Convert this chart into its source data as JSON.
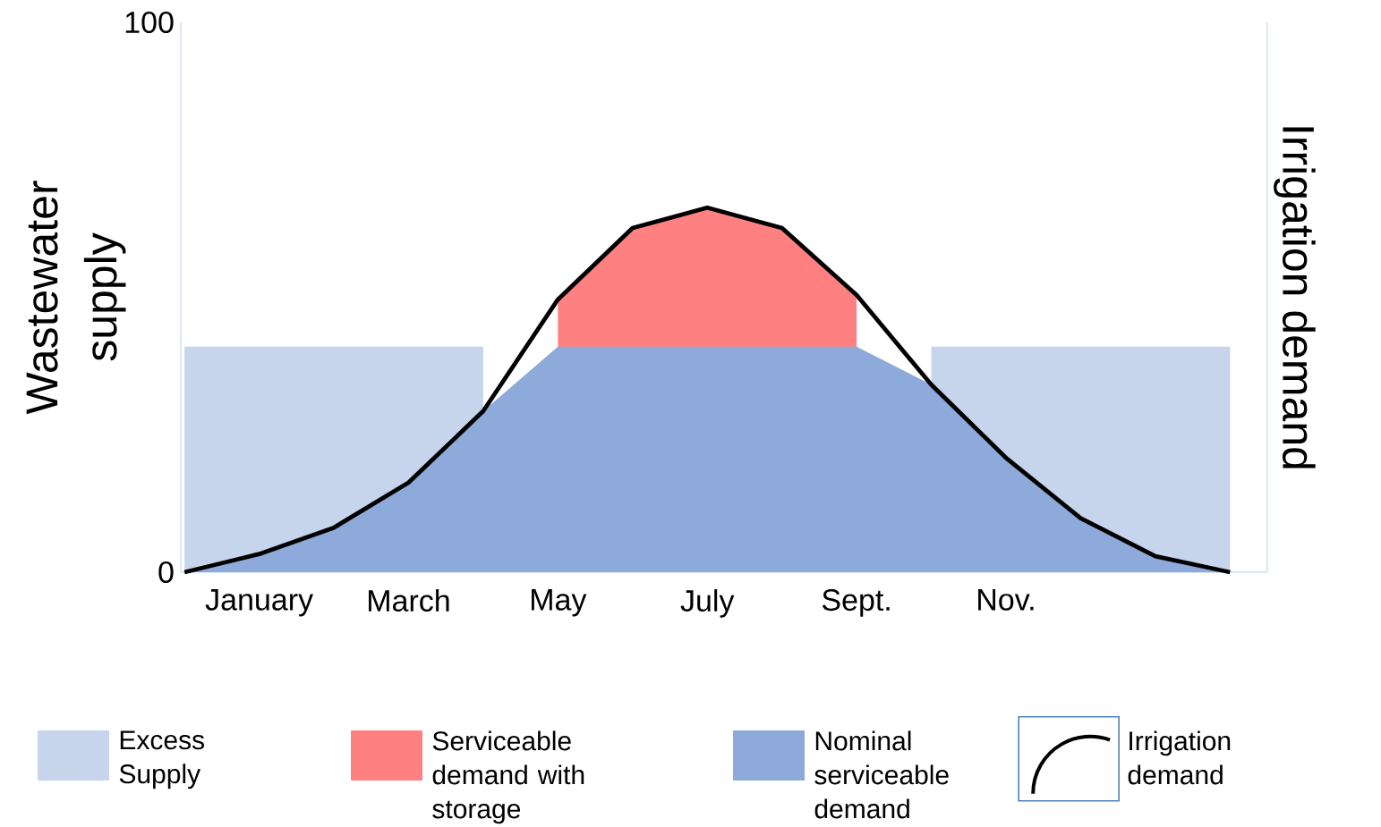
{
  "chart_data": {
    "type": "area",
    "legend": "bottom",
    "ylabel": "Wastewater supply",
    "y2label": "Irrigation demand",
    "categories": [
      null,
      "January",
      null,
      "March",
      null,
      "May",
      null,
      "July",
      null,
      "Sept.",
      null,
      "Nov.",
      null,
      null,
      null
    ],
    "ylim": [
      0,
      100
    ],
    "yticks": [
      0,
      100
    ],
    "series": [
      {
        "name": "Excess Supply",
        "color": "#c6d5eb",
        "values": [
          41,
          41,
          41,
          41,
          41,
          null,
          null,
          null,
          null,
          null,
          41,
          41,
          41,
          41,
          41
        ]
      },
      {
        "name": "Serviceable demand with storage",
        "color": "#ff8080",
        "values": [
          null,
          null,
          null,
          null,
          null,
          49.6,
          62.6,
          66.3,
          62.6,
          50.4,
          null,
          null,
          null,
          null,
          null
        ]
      },
      {
        "name": "Nominal serviceable demand",
        "color": "#8eaadb",
        "values": [
          0,
          3.3,
          8.1,
          16.3,
          29.3,
          41,
          41,
          41,
          41,
          41,
          34.1,
          20.8,
          9.8,
          2.9,
          0
        ]
      },
      {
        "name": "Irrigation demand",
        "type": "line",
        "color": "#000000",
        "values": [
          0,
          3.3,
          8.1,
          16.3,
          29.3,
          49.6,
          62.6,
          66.3,
          62.6,
          50.4,
          34.1,
          20.8,
          9.8,
          2.9,
          0
        ]
      }
    ]
  }
}
